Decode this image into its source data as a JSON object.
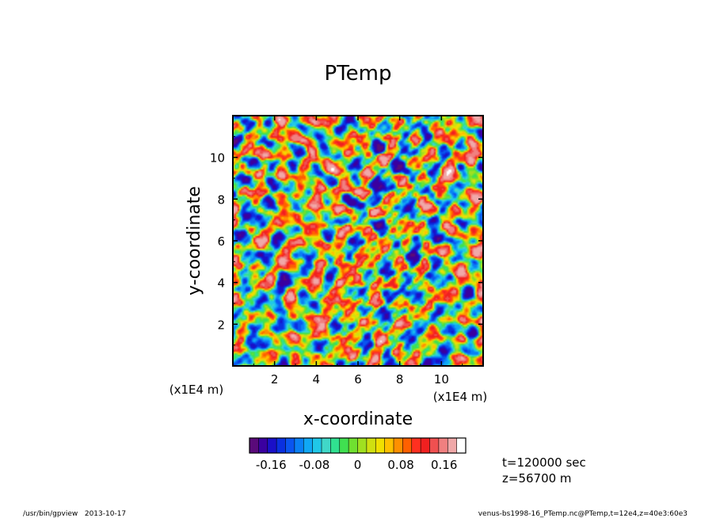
{
  "chart_data": {
    "type": "heatmap",
    "title": "PTemp",
    "xlabel": "x-coordinate",
    "ylabel": "y-coordinate",
    "x_unit": "(x1E4 m)",
    "y_unit": "(x1E4 m)",
    "xlim": [
      0,
      12
    ],
    "ylim": [
      0,
      12
    ],
    "x_ticks": [
      "2",
      "4",
      "6",
      "8",
      "10"
    ],
    "y_ticks": [
      "2",
      "4",
      "6",
      "8",
      "10"
    ],
    "colorbar": {
      "tick_labels": [
        "-0.16",
        "-0.08",
        "0",
        "0.08",
        "0.16"
      ],
      "tick_values": [
        -0.16,
        -0.08,
        0,
        0.08,
        0.16
      ],
      "range": [
        -0.2,
        0.2
      ],
      "colors": [
        "#5a0a7a",
        "#3a00a0",
        "#1a10c8",
        "#0a30e0",
        "#0a55f0",
        "#0a80f5",
        "#10a8f5",
        "#20c8e8",
        "#40d8c8",
        "#30e090",
        "#40e050",
        "#70e030",
        "#a0e020",
        "#d0e010",
        "#f0e000",
        "#ffc000",
        "#ff9000",
        "#ff6000",
        "#ff3020",
        "#f02020",
        "#f05050",
        "#f08080",
        "#f0a8a8",
        "#ffffff"
      ]
    },
    "annotations": [
      "t=120000 sec",
      "z=56700 m"
    ]
  },
  "footer": {
    "left": "/usr/bin/gpview   2013-10-17",
    "right": "venus-bs1998-16_PTemp.nc@PTemp,t=12e4,z=40e3:60e3"
  }
}
